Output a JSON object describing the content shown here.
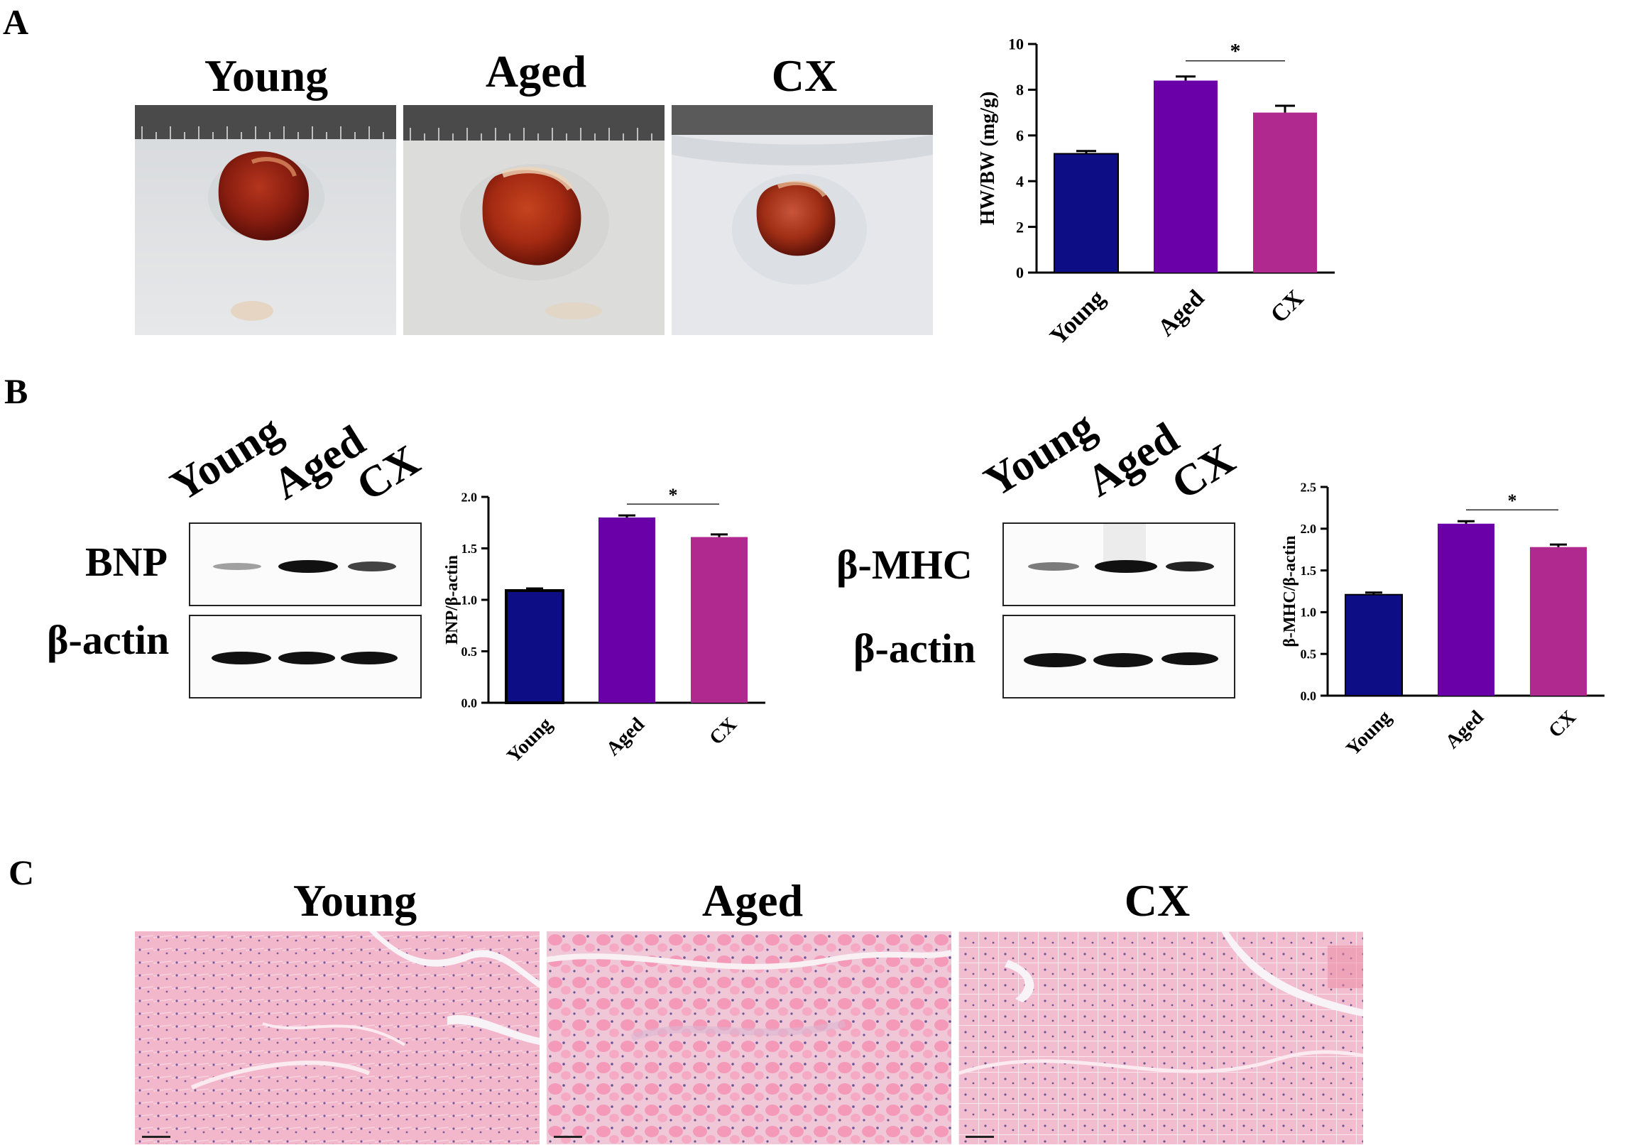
{
  "panels": {
    "A": {
      "letter": "A",
      "photo_labels": [
        "Young",
        "Aged",
        "CX"
      ]
    },
    "B": {
      "letter": "B",
      "blot1": {
        "lanes": [
          "Young",
          "Aged",
          "CX"
        ],
        "target_label": "BNP",
        "loading_label": "β-actin"
      },
      "blot2": {
        "lanes": [
          "Young",
          "Aged",
          "CX"
        ],
        "target_label": "β-MHC",
        "loading_label": "β-actin"
      }
    },
    "C": {
      "letter": "C",
      "image_labels": [
        "Young",
        "Aged",
        "CX"
      ]
    }
  },
  "colors": {
    "young": "#0d0d86",
    "aged": "#6a00a8",
    "cx": "#b0298e"
  },
  "chart_data": [
    {
      "id": "hwbw",
      "type": "bar",
      "categories": [
        "Young",
        "Aged",
        "CX"
      ],
      "values": [
        5.2,
        8.4,
        7.0
      ],
      "errors": [
        0.12,
        0.18,
        0.3
      ],
      "ylabel": "HW/BW (mg/g)",
      "ylim": [
        0,
        10
      ],
      "yticks": [
        "0",
        "2",
        "4",
        "6",
        "8",
        "10"
      ],
      "significance": {
        "from": 1,
        "to": 2,
        "label": "*"
      }
    },
    {
      "id": "bnp",
      "type": "bar",
      "categories": [
        "Young",
        "Aged",
        "CX"
      ],
      "values": [
        1.09,
        1.8,
        1.61
      ],
      "errors": [
        0.02,
        0.02,
        0.025
      ],
      "ylabel": "BNP/β-actin",
      "ylim": [
        0,
        2.0
      ],
      "yticks": [
        "0.0",
        "0.5",
        "1.0",
        "1.5",
        "2.0"
      ],
      "significance": {
        "from": 1,
        "to": 2,
        "label": "*"
      }
    },
    {
      "id": "bmhc",
      "type": "bar",
      "categories": [
        "Young",
        "Aged",
        "CX"
      ],
      "values": [
        1.21,
        2.06,
        1.78
      ],
      "errors": [
        0.025,
        0.03,
        0.03
      ],
      "ylabel": "β-MHC/β-actin",
      "ylim": [
        0,
        2.5
      ],
      "yticks": [
        "0.0",
        "0.5",
        "1.0",
        "1.5",
        "2.0",
        "2.5"
      ],
      "significance": {
        "from": 1,
        "to": 2,
        "label": "*"
      }
    }
  ]
}
